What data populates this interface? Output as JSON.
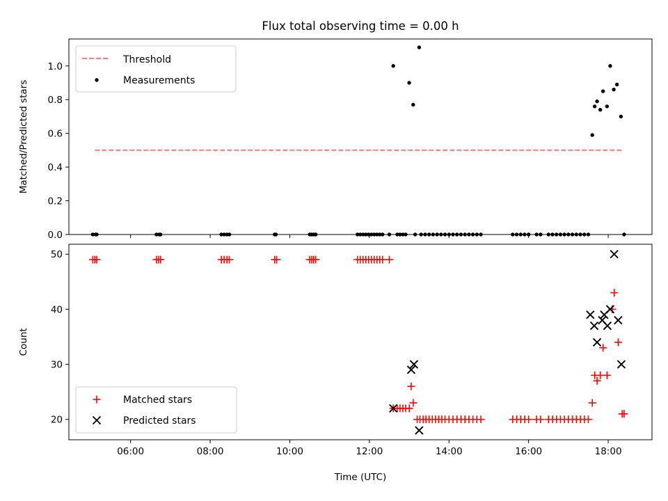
{
  "figure_title": "Flux total observing time = 0.00 h",
  "x_axis": {
    "label": "Time (UTC)",
    "range_hours": [
      4.45,
      19.1
    ],
    "ticks": [
      {
        "hour": 6,
        "label": "06:00"
      },
      {
        "hour": 8,
        "label": "08:00"
      },
      {
        "hour": 10,
        "label": "10:00"
      },
      {
        "hour": 12,
        "label": "12:00"
      },
      {
        "hour": 14,
        "label": "14:00"
      },
      {
        "hour": 16,
        "label": "16:00"
      },
      {
        "hour": 18,
        "label": "18:00"
      }
    ]
  },
  "colors": {
    "threshold": "#ff7f7f",
    "measurements": "#000000",
    "matched": "#ff0000",
    "predicted": "#000000"
  },
  "chart_data": [
    {
      "type": "scatter",
      "panel": "top",
      "ylabel": "Matched/Predicted stars",
      "ylim": [
        0,
        1.16
      ],
      "yticks": [
        {
          "value": 0.0,
          "label": "0.0"
        },
        {
          "value": 0.2,
          "label": "0.2"
        },
        {
          "value": 0.4,
          "label": "0.4"
        },
        {
          "value": 0.6,
          "label": "0.6"
        },
        {
          "value": 0.8,
          "label": "0.8"
        },
        {
          "value": 1.0,
          "label": "1.0"
        }
      ],
      "legend_position": "top-left",
      "threshold": {
        "name": "Threshold",
        "value": 0.5,
        "x_range": [
          5.1,
          18.35
        ],
        "style": "dashed"
      },
      "series": [
        {
          "name": "Measurements",
          "x": [
            5.05,
            5.12,
            5.15,
            6.65,
            6.72,
            6.75,
            8.28,
            8.35,
            8.42,
            8.48,
            9.62,
            9.65,
            10.5,
            10.55,
            10.6,
            10.65,
            11.7,
            11.77,
            11.84,
            11.91,
            11.98,
            12.05,
            12.12,
            12.19,
            12.26,
            12.33,
            12.5,
            12.6,
            12.7,
            12.77,
            12.84,
            12.91,
            13.0,
            13.1,
            13.15,
            13.25,
            13.3,
            13.4,
            13.5,
            13.6,
            13.7,
            13.8,
            13.9,
            14.0,
            14.1,
            14.2,
            14.3,
            14.4,
            14.5,
            14.6,
            14.7,
            14.8,
            15.6,
            15.7,
            15.8,
            15.9,
            16.0,
            16.2,
            16.3,
            16.5,
            16.6,
            16.7,
            16.8,
            16.9,
            17.0,
            17.1,
            17.2,
            17.3,
            17.4,
            17.5,
            17.6,
            17.66,
            17.72,
            17.8,
            17.87,
            17.97,
            18.05,
            18.14,
            18.22,
            18.32,
            18.4
          ],
          "y": [
            0,
            0,
            0,
            0,
            0,
            0,
            0,
            0,
            0,
            0,
            0,
            0,
            0,
            0,
            0,
            0,
            0,
            0,
            0,
            0,
            0,
            0,
            0,
            0,
            0,
            0,
            0,
            1.0,
            0,
            0,
            0,
            0,
            0.9,
            0.77,
            0,
            1.11,
            0,
            0,
            0,
            0,
            0,
            0,
            0,
            0,
            0,
            0,
            0,
            0,
            0,
            0,
            0,
            0,
            0,
            0,
            0,
            0,
            0,
            0,
            0,
            0,
            0,
            0,
            0,
            0,
            0,
            0,
            0,
            0,
            0,
            0,
            0.59,
            0.76,
            0.79,
            0.74,
            0.85,
            0.76,
            1.0,
            0.86,
            0.89,
            0.7,
            0
          ]
        }
      ]
    },
    {
      "type": "scatter",
      "panel": "bottom",
      "ylabel": "Count",
      "ylim": [
        16.3,
        51.8
      ],
      "yticks": [
        {
          "value": 20,
          "label": "20"
        },
        {
          "value": 30,
          "label": "30"
        },
        {
          "value": 40,
          "label": "40"
        },
        {
          "value": 50,
          "label": "50"
        }
      ],
      "legend_position": "bottom-left",
      "series": [
        {
          "name": "Matched stars",
          "marker": "plus",
          "x": [
            5.05,
            5.1,
            5.15,
            6.65,
            6.7,
            6.75,
            8.28,
            8.35,
            8.42,
            8.48,
            9.62,
            9.67,
            10.5,
            10.55,
            10.6,
            10.65,
            11.7,
            11.77,
            11.84,
            11.91,
            11.98,
            12.05,
            12.12,
            12.19,
            12.26,
            12.33,
            12.5,
            12.6,
            12.7,
            12.77,
            12.84,
            12.91,
            13.0,
            13.05,
            13.1,
            13.2,
            13.27,
            13.35,
            13.42,
            13.5,
            13.58,
            13.66,
            13.74,
            13.82,
            13.9,
            14.0,
            14.1,
            14.2,
            14.3,
            14.4,
            14.5,
            14.6,
            14.7,
            14.8,
            15.6,
            15.7,
            15.8,
            15.9,
            16.0,
            16.2,
            16.3,
            16.5,
            16.6,
            16.7,
            16.8,
            16.9,
            17.0,
            17.1,
            17.2,
            17.3,
            17.4,
            17.5,
            17.6,
            17.66,
            17.72,
            17.8,
            17.87,
            17.97,
            18.1,
            18.15,
            18.25,
            18.35,
            18.4
          ],
          "y": [
            49,
            49,
            49,
            49,
            49,
            49,
            49,
            49,
            49,
            49,
            49,
            49,
            49,
            49,
            49,
            49,
            49,
            49,
            49,
            49,
            49,
            49,
            49,
            49,
            49,
            49,
            49,
            22,
            22,
            22,
            22,
            22,
            22,
            26,
            23,
            20,
            20,
            20,
            20,
            20,
            20,
            20,
            20,
            20,
            20,
            20,
            20,
            20,
            20,
            20,
            20,
            20,
            20,
            20,
            20,
            20,
            20,
            20,
            20,
            20,
            20,
            20,
            20,
            20,
            20,
            20,
            20,
            20,
            20,
            20,
            20,
            20,
            23,
            28,
            27,
            28,
            33,
            28,
            40,
            43,
            34,
            21,
            21
          ]
        },
        {
          "name": "Predicted stars",
          "marker": "x",
          "x": [
            12.6,
            13.05,
            13.12,
            13.25,
            17.55,
            17.65,
            17.72,
            17.85,
            17.9,
            17.98,
            18.05,
            18.15,
            18.25,
            18.33
          ],
          "y": [
            22,
            29,
            30,
            18,
            39,
            37,
            34,
            38,
            39,
            37,
            40,
            50,
            38,
            30
          ]
        }
      ]
    }
  ]
}
